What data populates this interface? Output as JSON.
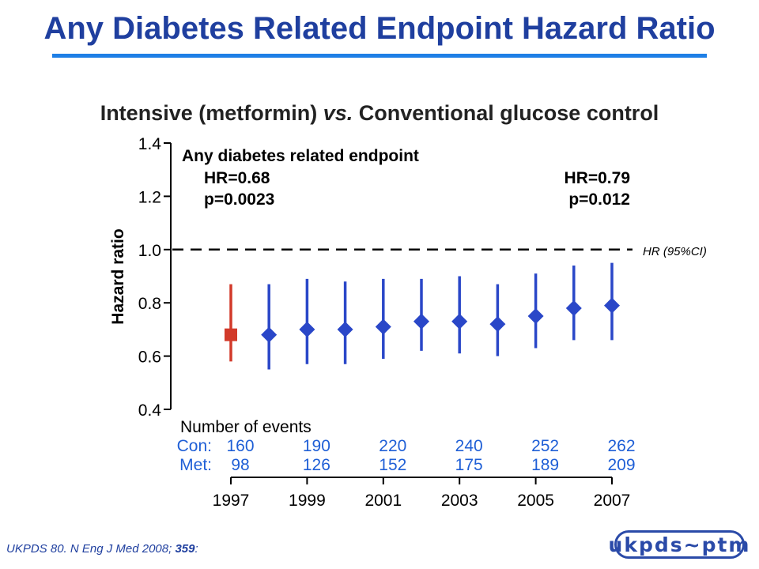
{
  "header": {
    "title": "Any Diabetes Related Endpoint Hazard Ratio",
    "subtitle_prefix": "Intensive (metformin) ",
    "subtitle_vs": "vs.",
    "subtitle_suffix": " Conventional glucose control"
  },
  "chart_data": {
    "type": "scatter",
    "ylabel": "Hazard ratio",
    "ylim": [
      0.4,
      1.4
    ],
    "yticks": [
      "1.4",
      "1.2",
      "1.0",
      "0.8",
      "0.6",
      "0.4"
    ],
    "xlim": [
      1997,
      2007
    ],
    "xticks": [
      "1997",
      "1999",
      "2001",
      "2003",
      "2005",
      "2007"
    ],
    "reference_line": {
      "y": 1.0,
      "label": "HR (95%CI)",
      "style": "dashed"
    },
    "annotations": {
      "heading": "Any diabetes related endpoint",
      "left_hr": "HR=0.68",
      "left_p": "p=0.0023",
      "right_hr": "HR=0.79",
      "right_p": "p=0.012"
    },
    "series": [
      {
        "marker": "square",
        "color": "#d23a2a",
        "x": [
          1997
        ],
        "y": [
          0.68
        ],
        "lower": [
          0.58
        ],
        "upper": [
          0.87
        ]
      },
      {
        "marker": "diamond",
        "color": "#2a47c8",
        "x": [
          1998,
          1999,
          2000,
          2001,
          2002,
          2003,
          2004,
          2005,
          2006,
          2007
        ],
        "y": [
          0.68,
          0.7,
          0.7,
          0.71,
          0.73,
          0.73,
          0.72,
          0.75,
          0.78,
          0.79
        ],
        "lower": [
          0.55,
          0.57,
          0.57,
          0.59,
          0.62,
          0.61,
          0.6,
          0.63,
          0.66,
          0.66
        ],
        "upper": [
          0.87,
          0.89,
          0.88,
          0.89,
          0.89,
          0.9,
          0.87,
          0.91,
          0.94,
          0.95
        ]
      }
    ],
    "events": {
      "heading": "Number of events",
      "con_label": "Con:",
      "met_label": "Met:",
      "columns": [
        {
          "year": 1997,
          "con": "160",
          "met": "98"
        },
        {
          "year": 1999,
          "con": "190",
          "met": "126"
        },
        {
          "year": 2001,
          "con": "220",
          "met": "152"
        },
        {
          "year": 2003,
          "con": "240",
          "met": "175"
        },
        {
          "year": 2005,
          "con": "252",
          "met": "189"
        },
        {
          "year": 2007,
          "con": "262",
          "met": "209"
        }
      ]
    }
  },
  "footer": {
    "citation_text": "UKPDS 80. N Eng J Med 2008; ",
    "citation_volume": "359",
    "citation_end": ":",
    "logo_text": "ukpds~ptm"
  },
  "colors": {
    "title": "#1f3f9f",
    "rule": "#1e7fe6",
    "conventional": "#d23a2a",
    "metformin": "#2a47c8",
    "events_numbers": "#1f5fd6"
  }
}
